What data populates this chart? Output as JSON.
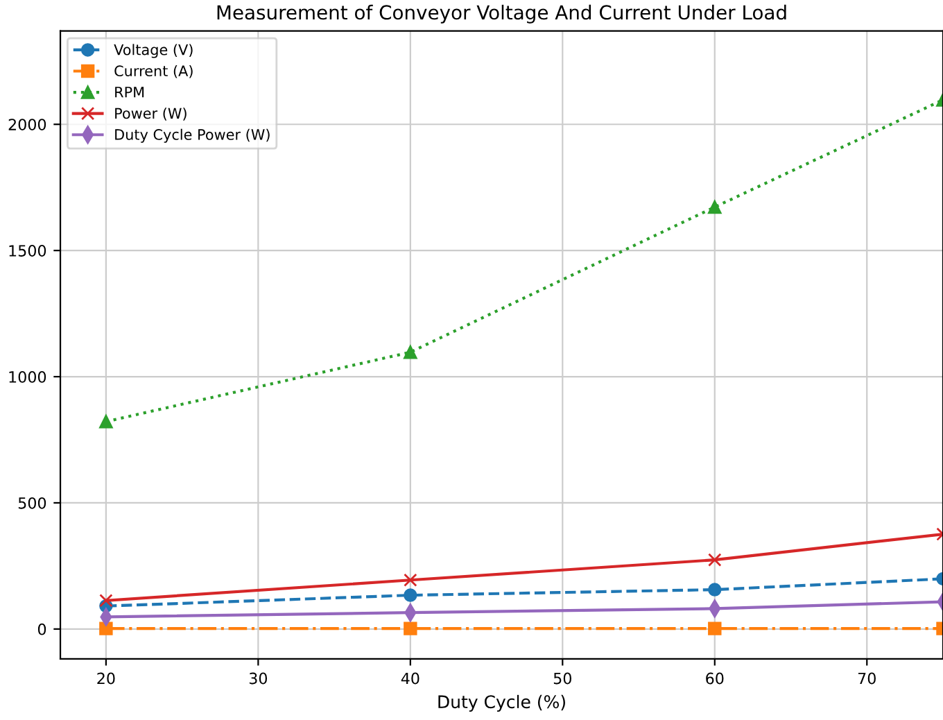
{
  "chart_data": {
    "type": "line",
    "title": "Measurement of Conveyor Voltage And Current Under Load",
    "xlabel": "Duty Cycle (%)",
    "x": [
      20,
      40,
      60,
      75
    ],
    "series": [
      {
        "name": "Voltage (V)",
        "color": "#1f77b4",
        "marker": "circle",
        "line_style": "dashed",
        "values": [
          91,
          134,
          156,
          199
        ]
      },
      {
        "name": "Current (A)",
        "color": "#ff7f0e",
        "marker": "square",
        "line_style": "dashdot",
        "values": [
          2,
          2,
          2,
          2
        ]
      },
      {
        "name": "RPM",
        "color": "#2ca02c",
        "marker": "triangle",
        "line_style": "dotted",
        "values": [
          822,
          1097,
          1672,
          2097
        ]
      },
      {
        "name": "Power (W)",
        "color": "#d62728",
        "marker": "cross",
        "line_style": "solid",
        "values": [
          113,
          194,
          274,
          376
        ]
      },
      {
        "name": "Duty Cycle Power (W)",
        "color": "#9467bd",
        "marker": "diamond",
        "line_style": "solid",
        "values": [
          48,
          65,
          81,
          108
        ]
      }
    ],
    "xlim": [
      17,
      75
    ],
    "xticks": [
      20,
      30,
      40,
      50,
      60,
      70
    ],
    "ylim": [
      -118,
      2370
    ],
    "yticks": [
      0,
      500,
      1000,
      1500,
      2000
    ],
    "grid": true,
    "legend": "top left"
  }
}
